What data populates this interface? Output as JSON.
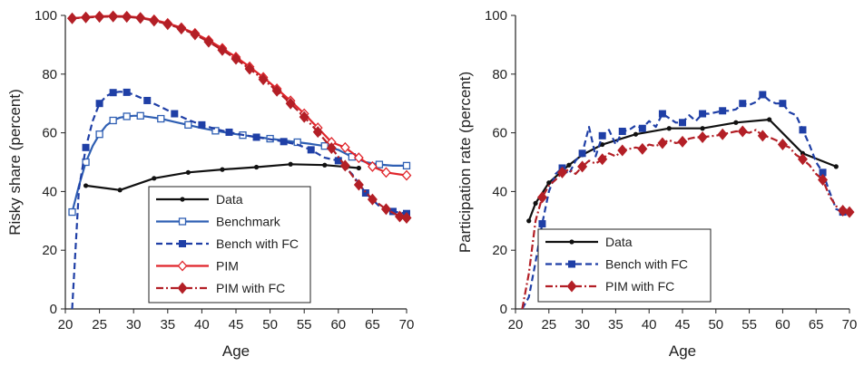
{
  "chart_data": [
    {
      "type": "line",
      "title": "",
      "xlabel": "Age",
      "ylabel": "Risky share (percent)",
      "xlim": [
        20,
        70
      ],
      "ylim": [
        0,
        100
      ],
      "xticks": [
        "20",
        "25",
        "30",
        "35",
        "40",
        "45",
        "50",
        "55",
        "60",
        "65",
        "70"
      ],
      "yticks": [
        "0",
        "20",
        "40",
        "60",
        "80",
        "100"
      ],
      "legend_position": "bottom-center",
      "series": [
        {
          "name": "Data",
          "color": "#111111",
          "style": "solid",
          "marker": "dot",
          "x": [
            23,
            28,
            33,
            38,
            43,
            48,
            53,
            58,
            63
          ],
          "y": [
            42,
            40.5,
            44.5,
            46.5,
            47.5,
            48.3,
            49.3,
            49,
            48
          ]
        },
        {
          "name": "Benchmark",
          "color": "#2f5fb3",
          "style": "solid",
          "marker": "square-open",
          "x": [
            21,
            22,
            23,
            24,
            25,
            26,
            27,
            28,
            29,
            30,
            31,
            32,
            34,
            36,
            38,
            40,
            42,
            44,
            46,
            48,
            50,
            52,
            54,
            56,
            58,
            60,
            62,
            64,
            66,
            68,
            70
          ],
          "y": [
            33,
            42,
            50,
            55.5,
            59.5,
            62.5,
            64.2,
            65.2,
            65.6,
            65.8,
            65.8,
            65.5,
            64.8,
            63.7,
            62.7,
            61.6,
            60.7,
            59.9,
            59.2,
            58.6,
            58,
            57.4,
            56.8,
            56.2,
            55.5,
            54.2,
            51.8,
            50,
            49.2,
            48.8,
            48.8
          ]
        },
        {
          "name": "Bench with FC",
          "color": "#1f3fa6",
          "style": "dashed",
          "marker": "square",
          "x": [
            21,
            22,
            23,
            24,
            25,
            26,
            27,
            28,
            29,
            30,
            32,
            34,
            36,
            38,
            40,
            42,
            44,
            46,
            48,
            50,
            52,
            54,
            56,
            58,
            60,
            62,
            64,
            66,
            68,
            70
          ],
          "y": [
            0,
            41,
            55,
            64,
            70,
            72.5,
            73.7,
            74,
            73.8,
            73,
            71,
            68.8,
            66.5,
            64.4,
            62.7,
            61.3,
            60.2,
            59.3,
            58.5,
            57.8,
            57,
            56,
            54.2,
            51.5,
            50.5,
            46,
            39.5,
            35,
            33.2,
            32.5
          ]
        },
        {
          "name": "PIM",
          "color": "#e0252b",
          "style": "solid",
          "marker": "diamond-open",
          "x": [
            21,
            23,
            25,
            27,
            29,
            31,
            33,
            35,
            37,
            39,
            41,
            43,
            45,
            47,
            49,
            51,
            53,
            55,
            57,
            59,
            61,
            63,
            65,
            67,
            70
          ],
          "y": [
            99,
            99.4,
            99.7,
            99.8,
            99.7,
            99.3,
            98.5,
            97.3,
            95.8,
            93.9,
            91.5,
            88.8,
            85.8,
            82.5,
            78.9,
            75,
            70.9,
            66.5,
            61.7,
            56.8,
            55,
            51.5,
            48.5,
            46.5,
            45.5
          ]
        },
        {
          "name": "PIM with FC",
          "color": "#b31f26",
          "style": "dashdot",
          "marker": "diamond",
          "x": [
            21,
            23,
            25,
            27,
            29,
            31,
            33,
            35,
            37,
            39,
            41,
            43,
            45,
            47,
            49,
            51,
            53,
            55,
            57,
            59,
            61,
            63,
            65,
            67,
            69,
            70
          ],
          "y": [
            99,
            99.3,
            99.5,
            99.6,
            99.5,
            99.1,
            98.2,
            97,
            95.5,
            93.5,
            91,
            88.2,
            85.2,
            81.8,
            78.2,
            74.3,
            70,
            65.4,
            60.3,
            54.8,
            48.8,
            42.3,
            37.3,
            34,
            31.5,
            31
          ]
        }
      ]
    },
    {
      "type": "line",
      "title": "",
      "xlabel": "Age",
      "ylabel": "Participation rate (percent)",
      "xlim": [
        20,
        70
      ],
      "ylim": [
        0,
        100
      ],
      "xticks": [
        "20",
        "25",
        "30",
        "35",
        "40",
        "45",
        "50",
        "55",
        "60",
        "65",
        "70"
      ],
      "yticks": [
        "0",
        "20",
        "40",
        "60",
        "80",
        "100"
      ],
      "legend_position": "bottom-center",
      "series": [
        {
          "name": "Data",
          "color": "#111111",
          "style": "solid",
          "marker": "dot",
          "x": [
            22,
            23,
            25,
            28,
            30,
            33,
            38,
            43,
            48,
            53,
            58,
            63,
            68
          ],
          "y": [
            30,
            36,
            43,
            49,
            52.5,
            56,
            59.5,
            61.5,
            61.5,
            63.5,
            64.5,
            53,
            48.5
          ]
        },
        {
          "name": "Bench with FC",
          "color": "#1f3fa6",
          "style": "dashed",
          "marker": "square",
          "x": [
            21,
            22,
            23,
            24,
            25,
            26,
            27,
            28,
            29,
            30,
            31,
            32,
            33,
            34,
            35,
            36,
            37,
            38,
            39,
            40,
            41,
            42,
            43,
            44,
            45,
            46,
            47,
            48,
            49,
            50,
            51,
            52,
            53,
            54,
            55,
            56,
            57,
            58,
            59,
            60,
            61,
            62,
            63,
            64,
            65,
            66,
            67,
            68,
            69
          ],
          "y": [
            0,
            4,
            16,
            29,
            40,
            46,
            48,
            46,
            50.5,
            53,
            62,
            52,
            59,
            61,
            56,
            60.5,
            61,
            62.5,
            61.5,
            64,
            62,
            66.5,
            65,
            63.5,
            63.5,
            66,
            64,
            66.5,
            66.5,
            67,
            67.5,
            67.5,
            68,
            70,
            69.5,
            70.5,
            73,
            71,
            70,
            70,
            67,
            66,
            61,
            56,
            50,
            46.5,
            40,
            34,
            33
          ]
        },
        {
          "name": "PIM with FC",
          "color": "#b31f26",
          "style": "dashdot",
          "marker": "diamond",
          "x": [
            21,
            22,
            23,
            24,
            25,
            26,
            27,
            28,
            29,
            30,
            31,
            32,
            33,
            34,
            35,
            36,
            37,
            38,
            39,
            40,
            41,
            42,
            43,
            44,
            45,
            46,
            47,
            48,
            49,
            50,
            51,
            52,
            53,
            54,
            55,
            56,
            57,
            58,
            59,
            60,
            61,
            62,
            63,
            64,
            65,
            66,
            67,
            68,
            69,
            70
          ],
          "y": [
            0,
            12,
            30,
            38,
            42,
            44,
            46.5,
            47.5,
            46,
            48.5,
            50.5,
            49.5,
            51,
            53,
            52,
            54,
            54.5,
            55,
            54.5,
            56,
            55.5,
            56.5,
            57.5,
            56.5,
            57,
            58,
            58.5,
            58.5,
            58.8,
            59,
            59.5,
            60,
            60.5,
            60.5,
            60,
            61,
            59,
            58.5,
            57.5,
            56,
            55,
            52.5,
            51,
            49,
            46,
            44,
            38.5,
            35,
            33.5,
            33
          ]
        }
      ]
    }
  ]
}
